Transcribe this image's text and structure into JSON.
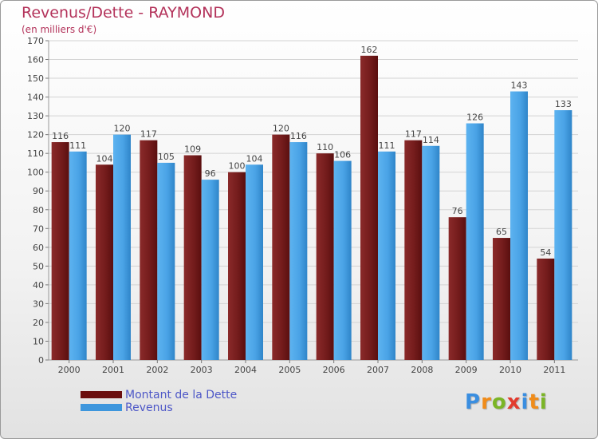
{
  "header": {
    "title": "Revenus/Dette - RAYMOND",
    "subtitle": "(en milliers d'€)"
  },
  "colors": {
    "title": "#b3325a",
    "dette": "#7a1e1e",
    "revenus": "#4aa3e6",
    "legend_text": "#4d57c7"
  },
  "legend": {
    "items": [
      {
        "label": "Montant de la Dette",
        "color": "#6b0f0f"
      },
      {
        "label": "Revenus",
        "color": "#3d96dd"
      }
    ]
  },
  "logo": {
    "text": "Proxiti",
    "letter_colors": [
      "#3a8ee0",
      "#f08c1a",
      "#7bb526",
      "#e23b2e",
      "#3a8ee0",
      "#f08c1a",
      "#7bb526"
    ]
  },
  "chart_data": {
    "type": "bar",
    "categories": [
      "2000",
      "2001",
      "2002",
      "2003",
      "2004",
      "2005",
      "2006",
      "2007",
      "2008",
      "2009",
      "2010",
      "2011"
    ],
    "series": [
      {
        "name": "Montant de la Dette",
        "values": [
          116,
          104,
          117,
          109,
          100,
          120,
          110,
          162,
          117,
          76,
          65,
          54
        ]
      },
      {
        "name": "Revenus",
        "values": [
          111,
          120,
          105,
          96,
          104,
          116,
          106,
          111,
          114,
          126,
          143,
          133
        ]
      }
    ],
    "ylim": [
      0,
      170
    ],
    "ytick_step": 10,
    "grid": true,
    "data_labels": true,
    "legend_position": "bottom-left"
  }
}
